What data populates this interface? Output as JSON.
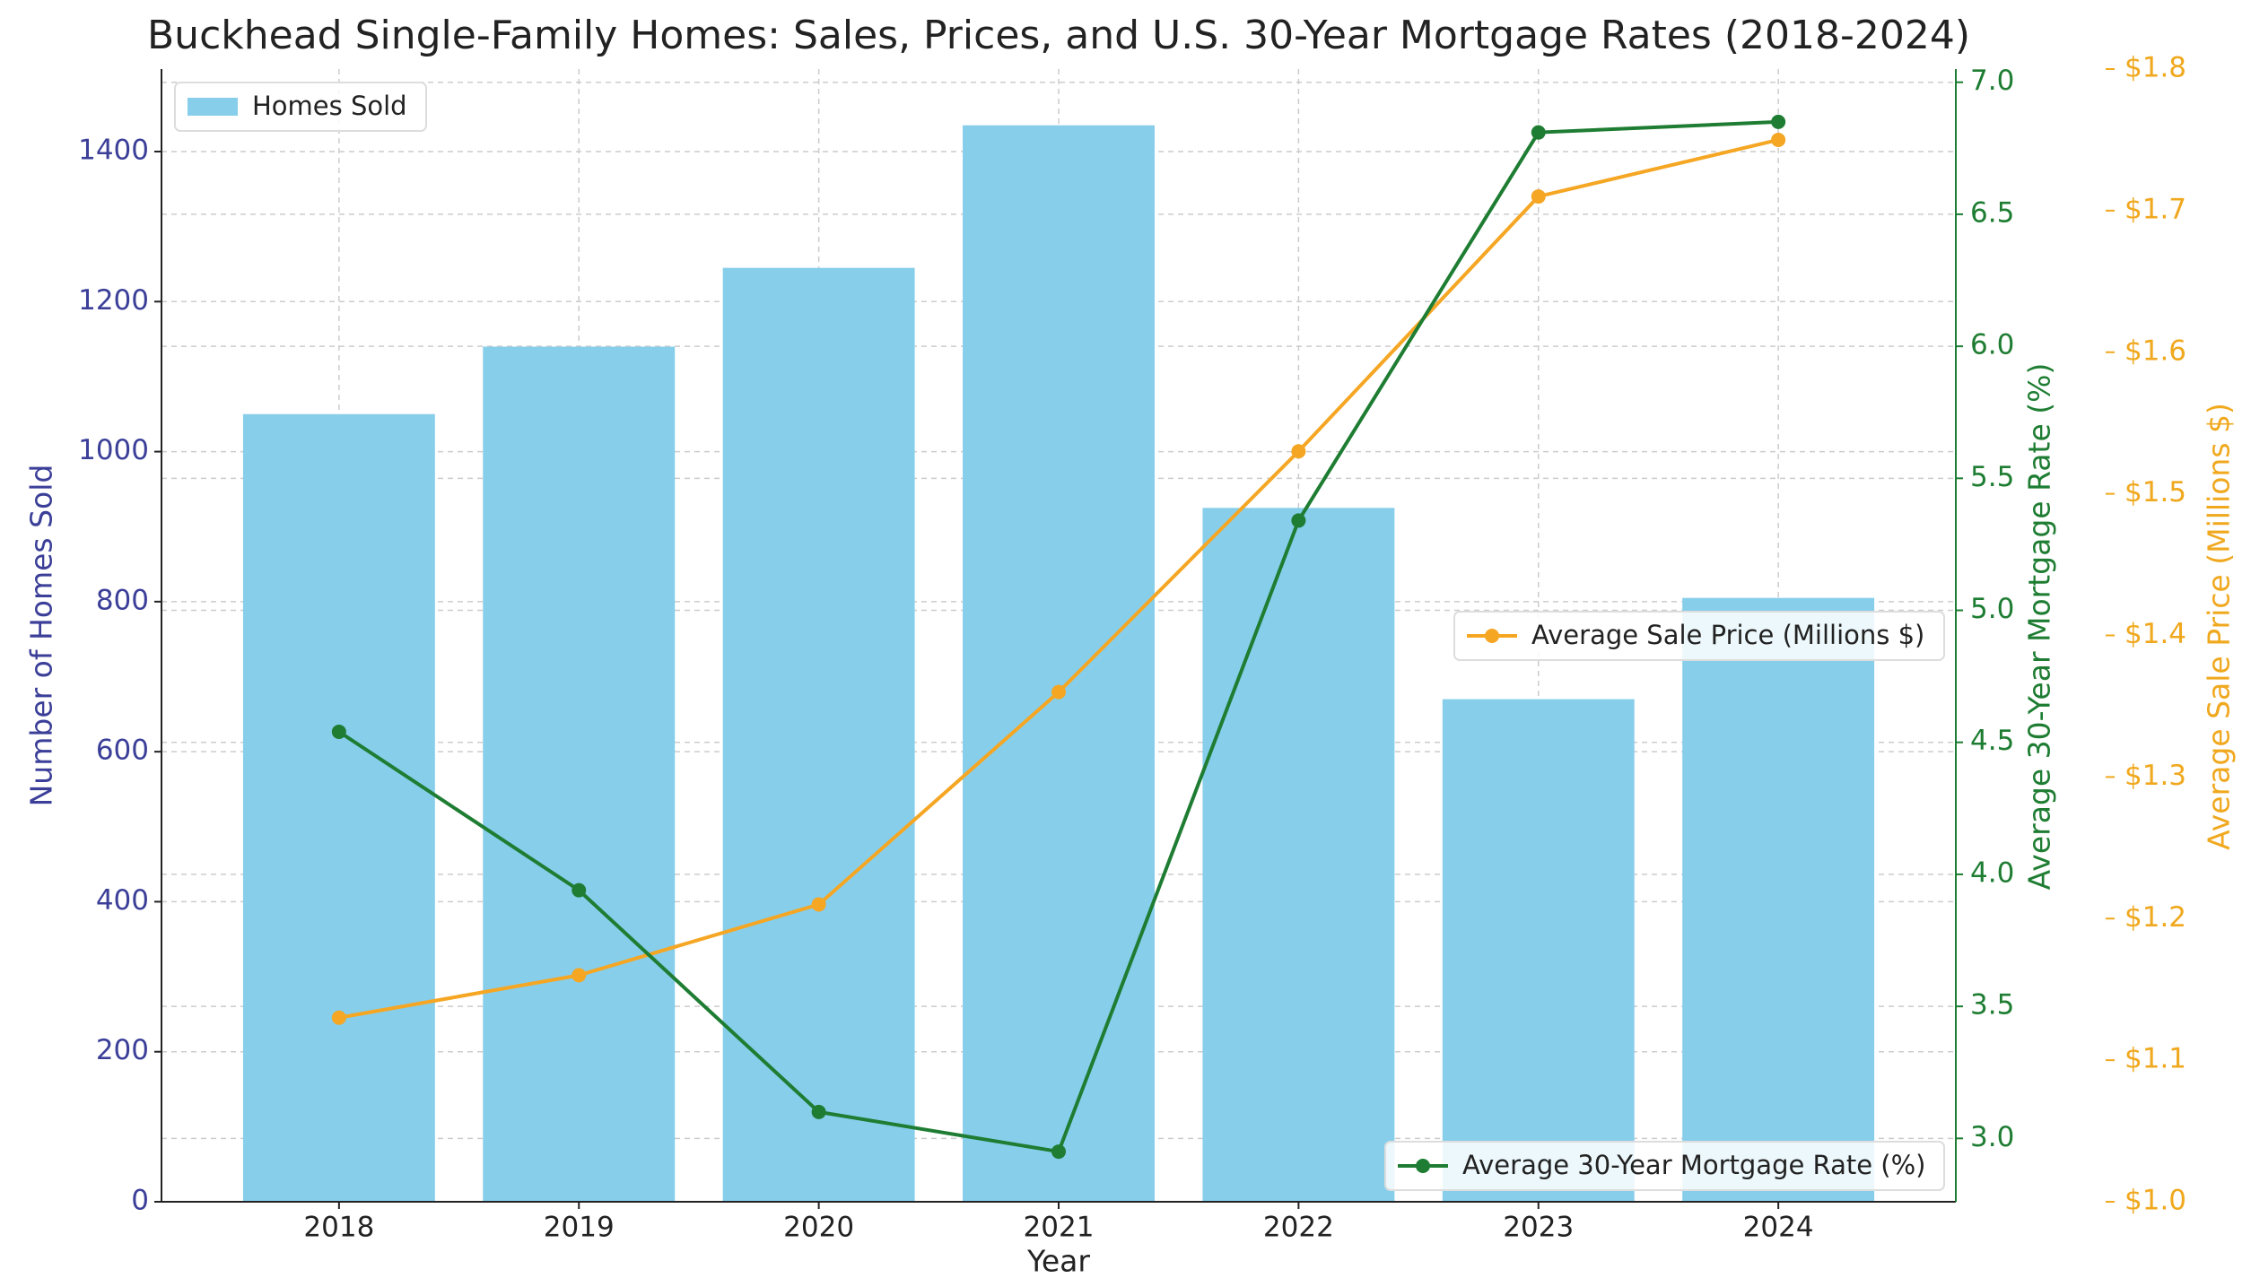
{
  "chart_data": {
    "type": "bar_line",
    "title": "Buckhead Single-Family Homes: Sales, Prices, and U.S. 30-Year Mortgage Rates (2018-2024)",
    "xlabel": "Year",
    "ylabel": "Number of Homes Sold",
    "y2label": "Average 30-Year Mortgage Rate (%)",
    "y3label": "Average Sale Price (Millions $)",
    "categories": [
      "2018",
      "2019",
      "2020",
      "2021",
      "2022",
      "2023",
      "2024"
    ],
    "series": [
      {
        "name": "Homes Sold",
        "type": "bar",
        "color": "#87ceeb",
        "axis": "y",
        "legend": "upper left",
        "values": [
          1050,
          1140,
          1245,
          1435,
          925,
          670,
          805
        ]
      },
      {
        "name": "Average Sale Price (Millions $)",
        "type": "line",
        "color": "#f5a623",
        "axis": "y3",
        "legend": "center right",
        "values": [
          1.13,
          1.16,
          1.21,
          1.36,
          1.53,
          1.71,
          1.75
        ]
      },
      {
        "name": "Average 30-Year Mortgage Rate (%)",
        "type": "line",
        "color": "#1e7d32",
        "axis": "y2",
        "legend": "lower right",
        "values": [
          4.54,
          3.94,
          3.1,
          2.95,
          5.34,
          6.81,
          6.85
        ]
      }
    ],
    "ylim": [
      0,
      1510
    ],
    "yticks": [
      0,
      200,
      400,
      600,
      800,
      1000,
      1200,
      1400
    ],
    "ycolor": "#3b3f98",
    "y2lim": [
      2.76,
      7.05
    ],
    "y2color": "#1e7d32",
    "y2ticks": [
      {
        "value": 3,
        "label": "3.0"
      },
      3.5,
      {
        "value": 4,
        "label": "4.0"
      },
      4.5,
      {
        "value": 5,
        "label": "5.0"
      },
      5.5,
      {
        "value": 6,
        "label": "6.0"
      },
      6.5,
      {
        "value": 7,
        "label": "7.0"
      }
    ],
    "y3lim": [
      1.0,
      1.8
    ],
    "y3color": "#f0a81e",
    "y3ticks": [
      {
        "value": 1.0,
        "label": "$1.0"
      },
      {
        "value": 1.1,
        "label": "$1.1"
      },
      {
        "value": 1.2,
        "label": "$1.2"
      },
      {
        "value": 1.3,
        "label": "$1.3"
      },
      {
        "value": 1.4,
        "label": "$1.4"
      },
      {
        "value": 1.5,
        "label": "$1.5"
      },
      {
        "value": 1.6,
        "label": "$1.6"
      },
      {
        "value": 1.7,
        "label": "$1.7"
      },
      {
        "value": 1.8,
        "label": "$1.8"
      }
    ],
    "grid": true
  }
}
